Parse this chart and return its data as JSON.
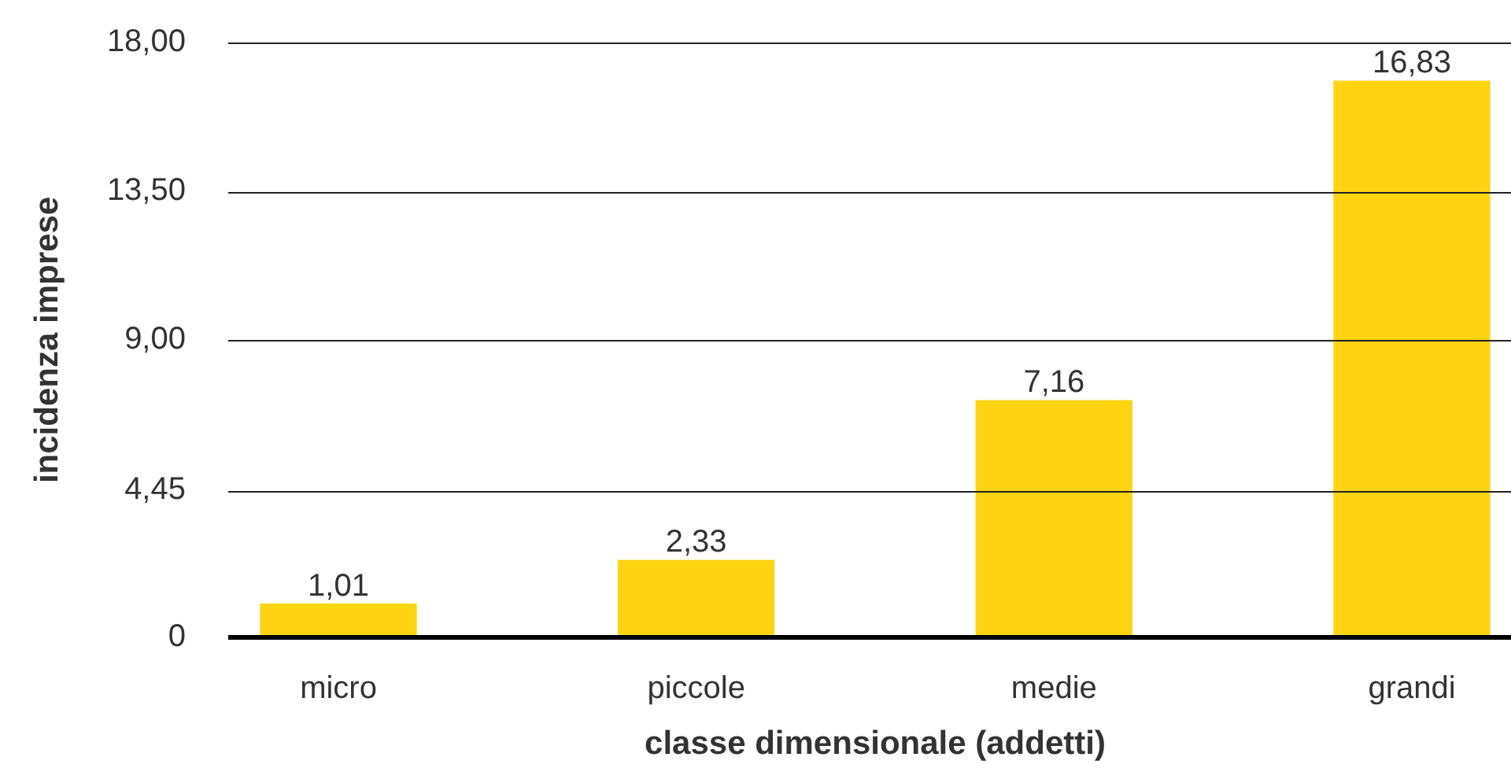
{
  "chart_data": {
    "type": "bar",
    "categories": [
      "micro",
      "piccole",
      "medie",
      "grandi"
    ],
    "values": [
      1.01,
      2.33,
      7.16,
      16.83
    ],
    "value_labels": [
      "1,01",
      "2,33",
      "7,16",
      "16,83"
    ],
    "color": "#ffd412",
    "xlabel": "classe dimensionale (addetti)",
    "ylabel": "incidenza imprese",
    "ylim": [
      0,
      18
    ],
    "yticks": [
      0,
      {
        "value": 4.45,
        "label": "4,45"
      },
      {
        "value": 9,
        "label": "9,00"
      },
      {
        "value": 13.5,
        "label": "13,50"
      },
      {
        "value": 18,
        "label": "18,00"
      }
    ],
    "grid": "y"
  }
}
